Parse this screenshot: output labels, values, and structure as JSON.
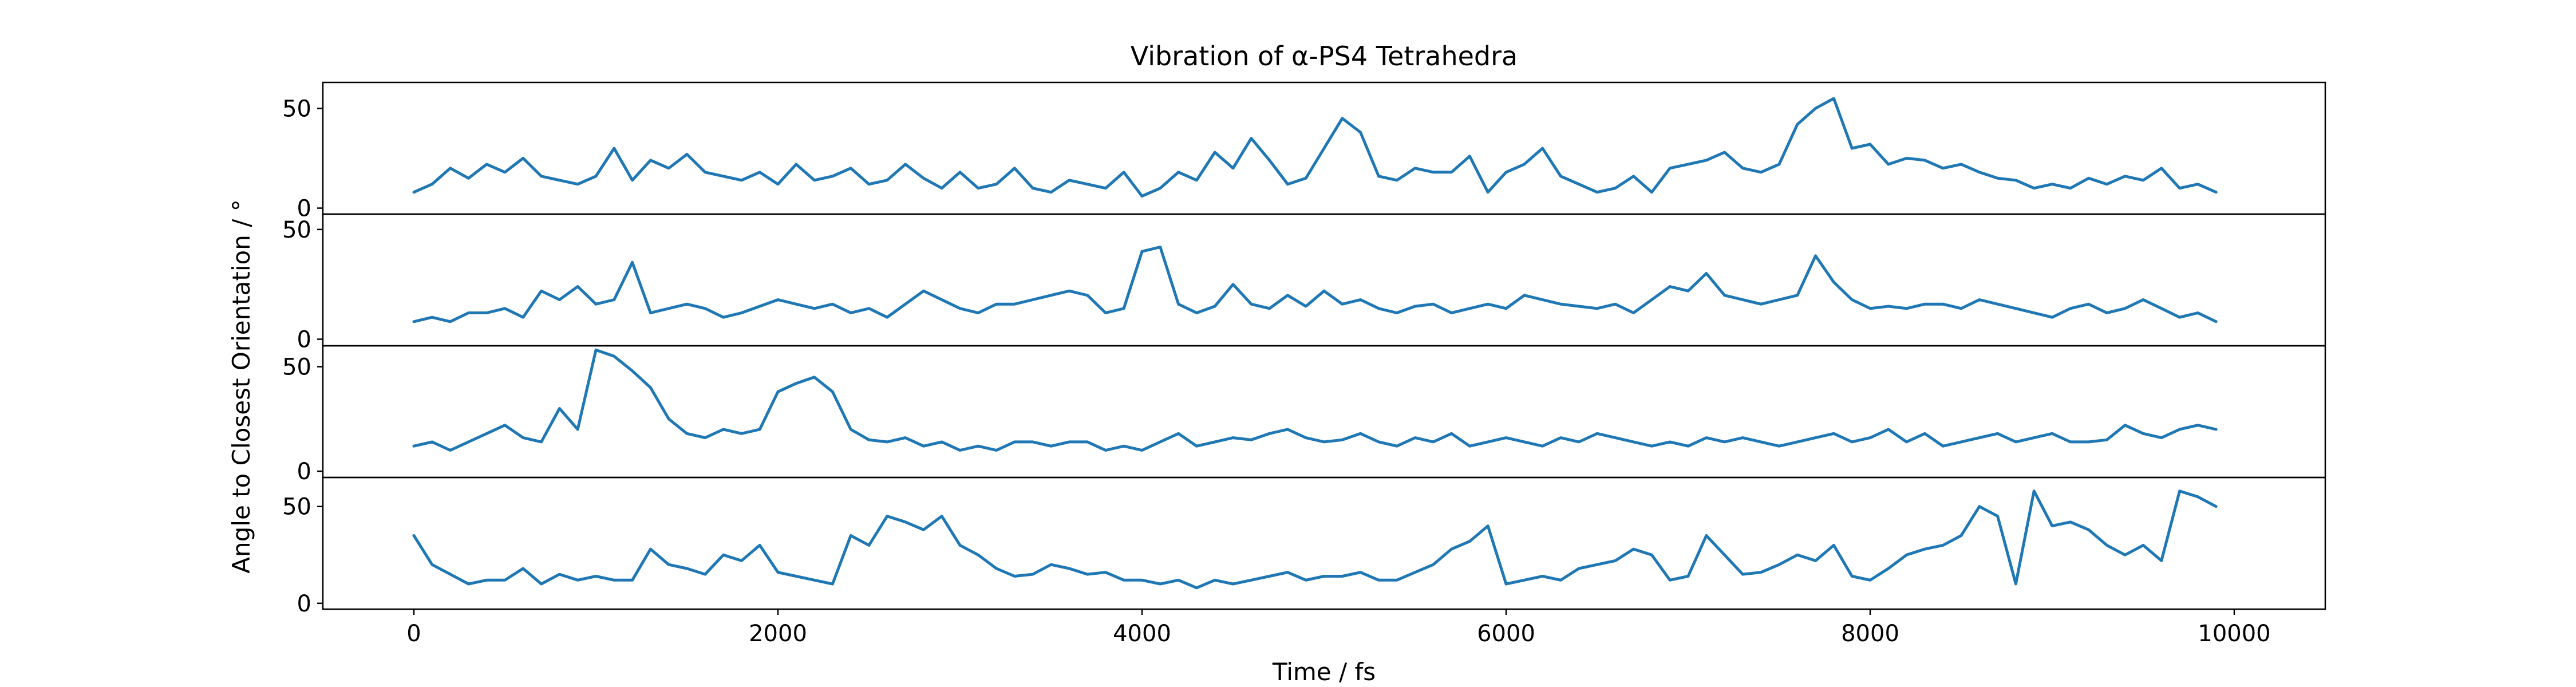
{
  "chart_data": {
    "type": "line",
    "title": "Vibration of α-PS4 Tetrahedra",
    "xlabel": "Time / fs",
    "ylabel": "Angle to Closest Orientation / °",
    "xlim": [
      -500,
      10500
    ],
    "x_ticks": [
      0,
      2000,
      4000,
      6000,
      8000,
      10000
    ],
    "y_ticks": [
      0,
      50
    ],
    "grid": false,
    "legend": "none",
    "color": "#1f77b4",
    "sample_step_fs": 100,
    "panels": [
      {
        "ylim": [
          -3,
          63
        ],
        "x_start": 0,
        "values": [
          8,
          12,
          20,
          15,
          22,
          18,
          25,
          16,
          14,
          12,
          16,
          30,
          14,
          24,
          20,
          27,
          18,
          16,
          14,
          18,
          12,
          22,
          14,
          16,
          20,
          12,
          14,
          22,
          15,
          10,
          18,
          10,
          12,
          20,
          10,
          8,
          14,
          12,
          10,
          18,
          6,
          10,
          18,
          14,
          28,
          20,
          35,
          24,
          12,
          15,
          30,
          45,
          38,
          16,
          14,
          20,
          18,
          18,
          26,
          8,
          18,
          22,
          30,
          16,
          12,
          8,
          10,
          16,
          8,
          20,
          22,
          24,
          28,
          20,
          18,
          22,
          42,
          50,
          55,
          30,
          32,
          22,
          25,
          24,
          20,
          22,
          18,
          15,
          14,
          10,
          12,
          10,
          15,
          12,
          16,
          14,
          20,
          10,
          12,
          8
        ]
      },
      {
        "ylim": [
          -3,
          57
        ],
        "x_start": 0,
        "values": [
          8,
          10,
          8,
          12,
          12,
          14,
          10,
          22,
          18,
          24,
          16,
          18,
          35,
          12,
          14,
          16,
          14,
          10,
          12,
          15,
          18,
          16,
          14,
          16,
          12,
          14,
          10,
          16,
          22,
          18,
          14,
          12,
          16,
          16,
          18,
          20,
          22,
          20,
          12,
          14,
          40,
          42,
          16,
          12,
          15,
          25,
          16,
          14,
          20,
          15,
          22,
          16,
          18,
          14,
          12,
          15,
          16,
          12,
          14,
          16,
          14,
          20,
          18,
          16,
          15,
          14,
          16,
          12,
          18,
          24,
          22,
          30,
          20,
          18,
          16,
          18,
          20,
          38,
          26,
          18,
          14,
          15,
          14,
          16,
          16,
          14,
          18,
          16,
          14,
          12,
          10,
          14,
          16,
          12,
          14,
          18,
          14,
          10,
          12,
          8
        ]
      },
      {
        "ylim": [
          -3,
          60
        ],
        "x_start": 0,
        "values": [
          12,
          14,
          10,
          14,
          18,
          22,
          16,
          14,
          30,
          20,
          58,
          55,
          48,
          40,
          25,
          18,
          16,
          20,
          18,
          20,
          38,
          42,
          45,
          38,
          20,
          15,
          14,
          16,
          12,
          14,
          10,
          12,
          10,
          14,
          14,
          12,
          14,
          14,
          10,
          12,
          10,
          14,
          18,
          12,
          14,
          16,
          15,
          18,
          20,
          16,
          14,
          15,
          18,
          14,
          12,
          16,
          14,
          18,
          12,
          14,
          16,
          14,
          12,
          16,
          14,
          18,
          16,
          14,
          12,
          14,
          12,
          16,
          14,
          16,
          14,
          12,
          14,
          16,
          18,
          14,
          16,
          20,
          14,
          18,
          12,
          14,
          16,
          18,
          14,
          16,
          18,
          14,
          14,
          15,
          22,
          18,
          16,
          20,
          22,
          20
        ]
      },
      {
        "ylim": [
          -3,
          65
        ],
        "x_start": 0,
        "values": [
          35,
          20,
          15,
          10,
          12,
          12,
          18,
          10,
          15,
          12,
          14,
          12,
          12,
          28,
          20,
          18,
          15,
          25,
          22,
          30,
          16,
          14,
          12,
          10,
          35,
          30,
          45,
          42,
          38,
          45,
          30,
          25,
          18,
          14,
          15,
          20,
          18,
          15,
          16,
          12,
          12,
          10,
          12,
          8,
          12,
          10,
          12,
          14,
          16,
          12,
          14,
          14,
          16,
          12,
          12,
          16,
          20,
          28,
          32,
          40,
          10,
          12,
          14,
          12,
          18,
          20,
          22,
          28,
          25,
          12,
          14,
          35,
          25,
          15,
          16,
          20,
          25,
          22,
          30,
          14,
          12,
          18,
          25,
          28,
          30,
          35,
          50,
          45,
          10,
          58,
          40,
          42,
          38,
          30,
          25,
          30,
          22,
          58,
          55,
          50
        ]
      }
    ]
  }
}
